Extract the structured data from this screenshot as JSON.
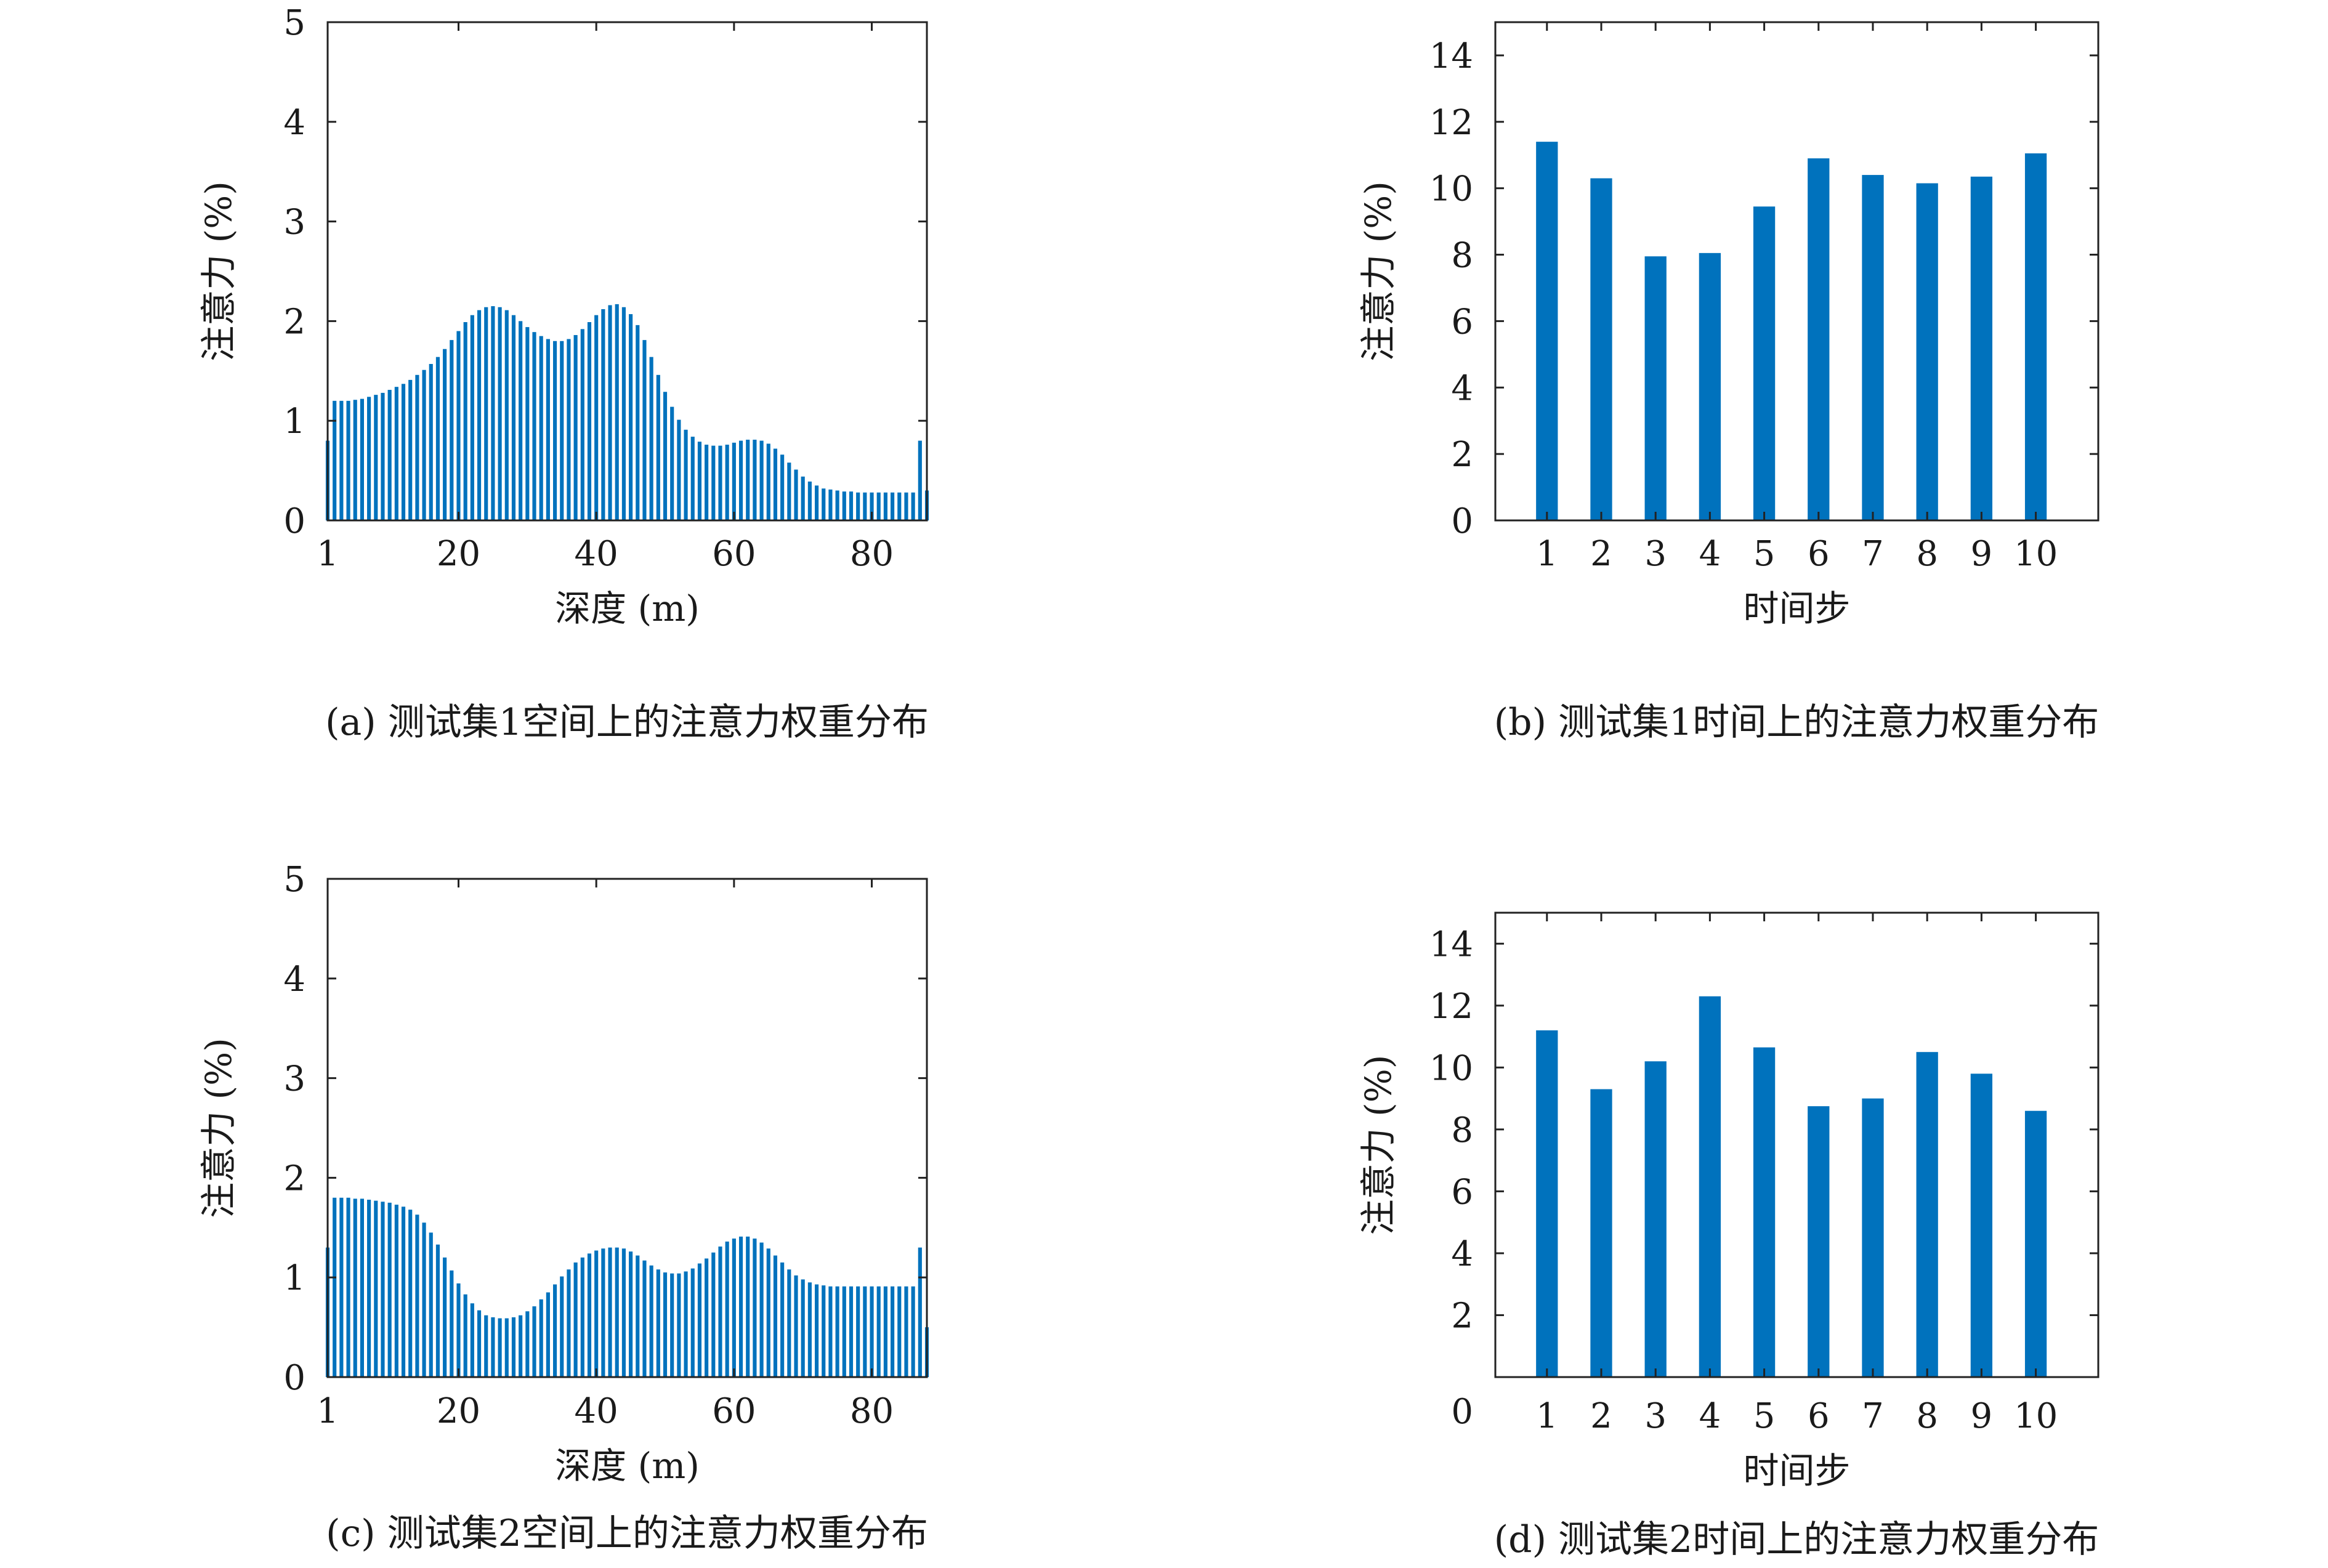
{
  "chart_data": [
    {
      "id": "a",
      "type": "bar",
      "caption": "(a) 测试集1空间上的注意力权重分布",
      "xlabel": "深度 (m)",
      "ylabel": "注意力 (%)",
      "xlim": [
        1,
        88
      ],
      "ylim": [
        0,
        5
      ],
      "xticks": [
        1,
        20,
        40,
        60,
        80
      ],
      "yticks": [
        0,
        1,
        2,
        3,
        4,
        5
      ],
      "color": "#0072bd",
      "bar_width": "thin",
      "x_start": 1,
      "values": [
        0.8,
        1.2,
        1.2,
        1.2,
        1.21,
        1.22,
        1.24,
        1.26,
        1.28,
        1.31,
        1.34,
        1.37,
        1.41,
        1.46,
        1.51,
        1.57,
        1.64,
        1.72,
        1.81,
        1.9,
        1.99,
        2.06,
        2.11,
        2.14,
        2.15,
        2.14,
        2.11,
        2.06,
        2.0,
        1.94,
        1.89,
        1.85,
        1.82,
        1.8,
        1.8,
        1.82,
        1.86,
        1.92,
        1.99,
        2.06,
        2.12,
        2.16,
        2.17,
        2.14,
        2.07,
        1.96,
        1.81,
        1.64,
        1.46,
        1.29,
        1.14,
        1.01,
        0.91,
        0.84,
        0.79,
        0.76,
        0.75,
        0.75,
        0.76,
        0.78,
        0.8,
        0.81,
        0.81,
        0.8,
        0.77,
        0.72,
        0.66,
        0.58,
        0.51,
        0.44,
        0.39,
        0.35,
        0.32,
        0.31,
        0.3,
        0.29,
        0.29,
        0.28,
        0.28,
        0.28,
        0.28,
        0.28,
        0.28,
        0.28,
        0.28,
        0.28,
        0.8,
        0.3
      ]
    },
    {
      "id": "b",
      "type": "bar",
      "caption": "(b) 测试集1时间上的注意力权重分布",
      "xlabel": "时间步",
      "ylabel": "注意力 (%)",
      "ylim": [
        0,
        15
      ],
      "xticks": [
        1,
        2,
        3,
        4,
        5,
        6,
        7,
        8,
        9,
        10
      ],
      "yticks": [
        0,
        2,
        4,
        6,
        8,
        10,
        12,
        14
      ],
      "color": "#0072bd",
      "bar_width": "wide",
      "categories": [
        1,
        2,
        3,
        4,
        5,
        6,
        7,
        8,
        9,
        10
      ],
      "values": [
        11.4,
        10.3,
        7.95,
        8.05,
        9.45,
        10.9,
        10.4,
        10.15,
        10.35,
        11.05
      ]
    },
    {
      "id": "c",
      "type": "bar",
      "caption": "(c) 测试集2空间上的注意力权重分布",
      "xlabel": "深度 (m)",
      "ylabel": "注意力 (%)",
      "xlim": [
        1,
        88
      ],
      "ylim": [
        0,
        5
      ],
      "xticks": [
        1,
        20,
        40,
        60,
        80
      ],
      "yticks": [
        0,
        1,
        2,
        3,
        4,
        5
      ],
      "color": "#0072bd",
      "bar_width": "thin",
      "x_start": 1,
      "values": [
        1.3,
        1.8,
        1.8,
        1.8,
        1.79,
        1.79,
        1.78,
        1.77,
        1.76,
        1.75,
        1.73,
        1.71,
        1.68,
        1.63,
        1.55,
        1.45,
        1.33,
        1.2,
        1.07,
        0.94,
        0.83,
        0.74,
        0.67,
        0.62,
        0.6,
        0.59,
        0.59,
        0.6,
        0.62,
        0.66,
        0.71,
        0.78,
        0.85,
        0.93,
        1.01,
        1.08,
        1.15,
        1.2,
        1.24,
        1.27,
        1.29,
        1.3,
        1.3,
        1.29,
        1.26,
        1.22,
        1.17,
        1.12,
        1.08,
        1.05,
        1.04,
        1.04,
        1.06,
        1.09,
        1.14,
        1.19,
        1.25,
        1.31,
        1.36,
        1.39,
        1.41,
        1.41,
        1.39,
        1.35,
        1.29,
        1.22,
        1.15,
        1.08,
        1.02,
        0.98,
        0.95,
        0.93,
        0.92,
        0.91,
        0.91,
        0.91,
        0.91,
        0.91,
        0.91,
        0.91,
        0.91,
        0.91,
        0.91,
        0.91,
        0.91,
        0.91,
        1.3,
        0.5
      ]
    },
    {
      "id": "d",
      "type": "bar",
      "caption": "(d) 测试集2时间上的注意力权重分布",
      "xlabel": "时间步",
      "ylabel": "注意力 (%)",
      "ylim": [
        0,
        15
      ],
      "xticks": [
        1,
        2,
        3,
        4,
        5,
        6,
        7,
        8,
        9,
        10
      ],
      "yticks": [
        0,
        2,
        4,
        6,
        8,
        10,
        12,
        14
      ],
      "color": "#0072bd",
      "bar_width": "wide",
      "categories": [
        1,
        2,
        3,
        4,
        5,
        6,
        7,
        8,
        9,
        10
      ],
      "values": [
        11.2,
        9.3,
        10.2,
        12.3,
        10.65,
        8.75,
        9.0,
        10.5,
        9.8,
        8.6
      ]
    }
  ]
}
